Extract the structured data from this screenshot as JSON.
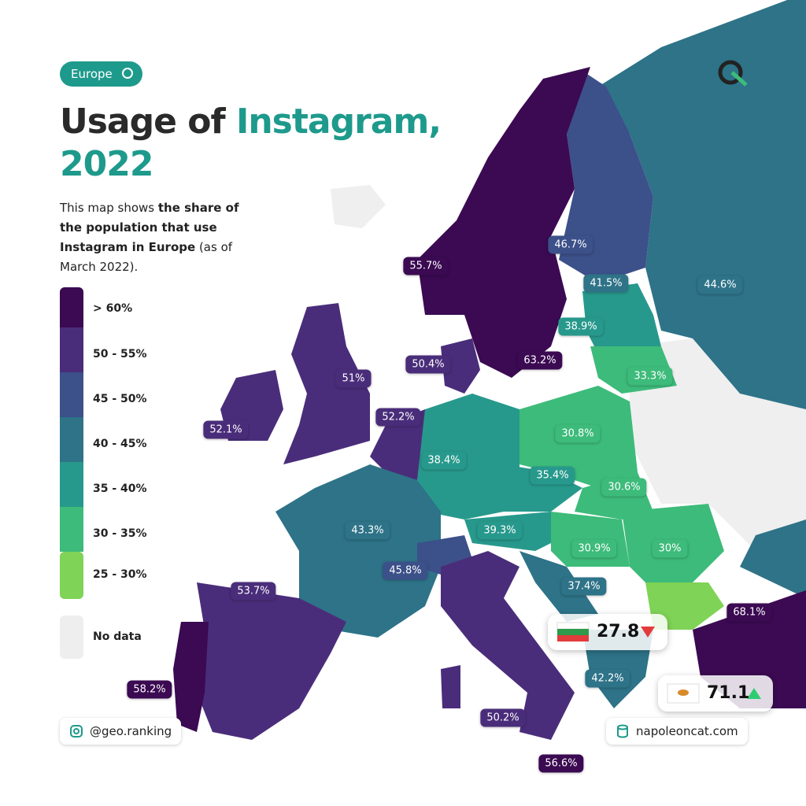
{
  "badge": "Europe",
  "title": {
    "plain": "Usage of",
    "highlight_line1": "Instagram,",
    "highlight_line2": "2022"
  },
  "subtitle": [
    "This map shows ",
    "the share of the population that use Instagram in Europe",
    " (as of March 2022)."
  ],
  "legend": [
    "> 60%",
    "50 - 55%",
    "45 - 50%",
    "40 - 45%",
    "35 - 40%",
    "30 - 35%",
    "25 - 30%",
    "No data"
  ],
  "labels": [
    "55.7%",
    "46.7%",
    "41.5%",
    "44.6%",
    "38.9%",
    "63.2%",
    "50.4%",
    "33.3%",
    "51%",
    "52.2%",
    "52.1%",
    "30.8%",
    "38.4%",
    "35.4%",
    "30.6%",
    "43.3%",
    "39.3%",
    "30.9%",
    "30%",
    "45.8%",
    "53.7%",
    "37.4%",
    "68.1%",
    "58.2%",
    "42.2%",
    "50.2%",
    "56.6%"
  ],
  "callouts": [
    "27.8",
    "71.1"
  ],
  "footer": {
    "left": "@geo.ranking",
    "right": "napoleoncat.com"
  }
}
